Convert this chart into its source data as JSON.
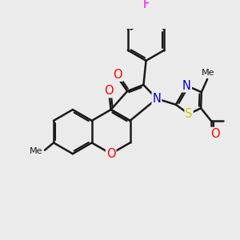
{
  "bg_color": "#ebebeb",
  "bond_color": "#1a1a1a",
  "bond_width": 1.8,
  "atom_colors": {
    "O": "#ff0000",
    "N": "#0000cd",
    "S": "#cccc00",
    "F": "#ff00ff",
    "C": "#1a1a1a"
  },
  "font_size_atom": 10.5,
  "figsize": [
    3.0,
    3.0
  ],
  "dpi": 100
}
